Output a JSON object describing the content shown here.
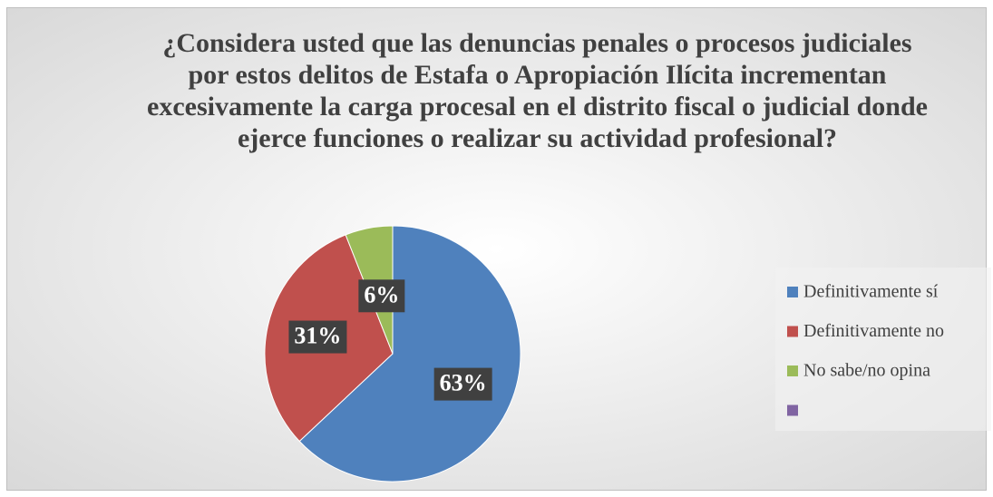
{
  "chart_data": {
    "type": "pie",
    "title": "¿Considera usted que las denuncias penales o procesos judiciales por estos delitos de Estafa o Apropiación Ilícita incrementan excesivamente la carga procesal en el distrito fiscal o judicial donde ejerce funciones o realizar su actividad profesional?",
    "categories": [
      "Definitivamente sí",
      "Definitivamente no",
      "No sabe/no opina",
      null
    ],
    "values": [
      63,
      31,
      6,
      0
    ],
    "value_labels": [
      "63%",
      "31%",
      "6%",
      null
    ],
    "colors": [
      "#4f81bd",
      "#c0504d",
      "#9bbb59",
      "#8064a2"
    ],
    "legend": "right"
  }
}
